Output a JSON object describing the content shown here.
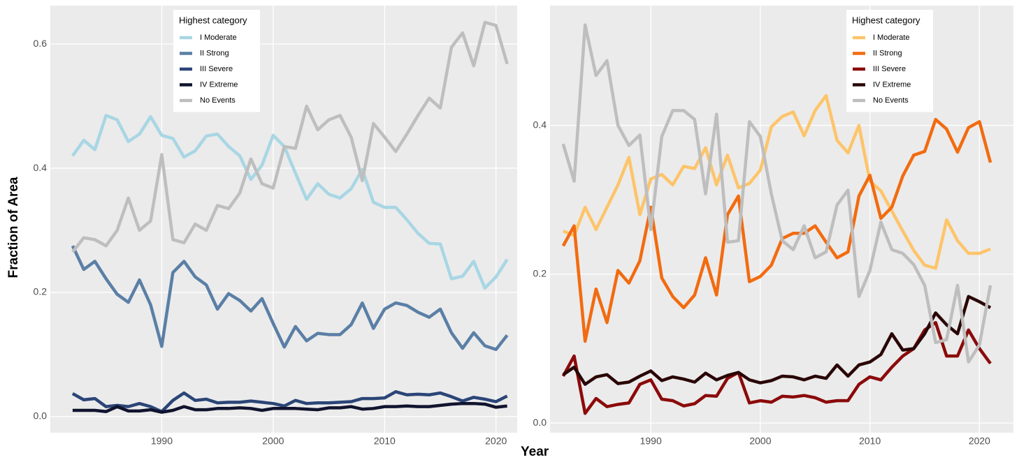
{
  "chart_data": [
    {
      "type": "line",
      "y_label": "Fraction of Area",
      "legend_title": "Highest category",
      "legend": "top-center",
      "grid": true,
      "x": [
        1982,
        1983,
        1984,
        1985,
        1986,
        1987,
        1988,
        1989,
        1990,
        1991,
        1992,
        1993,
        1994,
        1995,
        1996,
        1997,
        1998,
        1999,
        2000,
        2001,
        2002,
        2003,
        2004,
        2005,
        2006,
        2007,
        2008,
        2009,
        2010,
        2011,
        2012,
        2013,
        2014,
        2015,
        2016,
        2017,
        2018,
        2019,
        2020,
        2021
      ],
      "xlim": [
        1980,
        2021.9
      ],
      "xticks": [
        1990,
        2000,
        2010,
        2020
      ],
      "ylim": [
        -0.026,
        0.662
      ],
      "yticks": [
        {
          "value": 0,
          "label": "0.0"
        },
        0.2,
        0.4,
        0.6
      ],
      "series": [
        {
          "name": "I Moderate",
          "color": "#a8d6e4",
          "values": [
            0.42,
            0.445,
            0.43,
            0.485,
            0.478,
            0.443,
            0.455,
            0.483,
            0.453,
            0.448,
            0.418,
            0.428,
            0.452,
            0.455,
            0.435,
            0.42,
            0.382,
            0.405,
            0.453,
            0.435,
            0.392,
            0.35,
            0.375,
            0.358,
            0.352,
            0.367,
            0.398,
            0.345,
            0.337,
            0.337,
            0.317,
            0.295,
            0.279,
            0.278,
            0.222,
            0.226,
            0.25,
            0.207,
            0.225,
            0.253
          ]
        },
        {
          "name": "II Strong",
          "color": "#5b7fa6",
          "values": [
            0.275,
            0.237,
            0.25,
            0.222,
            0.197,
            0.184,
            0.22,
            0.18,
            0.113,
            0.232,
            0.25,
            0.225,
            0.212,
            0.173,
            0.198,
            0.187,
            0.17,
            0.19,
            0.15,
            0.112,
            0.145,
            0.122,
            0.134,
            0.132,
            0.132,
            0.148,
            0.183,
            0.142,
            0.173,
            0.183,
            0.179,
            0.168,
            0.16,
            0.173,
            0.135,
            0.11,
            0.135,
            0.114,
            0.108,
            0.131
          ]
        },
        {
          "name": "III Severe",
          "color": "#2b4577",
          "values": [
            0.037,
            0.027,
            0.029,
            0.016,
            0.018,
            0.016,
            0.021,
            0.016,
            0.008,
            0.026,
            0.038,
            0.026,
            0.028,
            0.022,
            0.023,
            0.023,
            0.025,
            0.023,
            0.021,
            0.017,
            0.026,
            0.021,
            0.022,
            0.022,
            0.023,
            0.024,
            0.029,
            0.029,
            0.03,
            0.04,
            0.035,
            0.036,
            0.035,
            0.038,
            0.032,
            0.025,
            0.031,
            0.028,
            0.024,
            0.033
          ]
        },
        {
          "name": "IV Extreme",
          "color": "#10142e",
          "values": [
            0.01,
            0.01,
            0.01,
            0.008,
            0.016,
            0.009,
            0.009,
            0.011,
            0.007,
            0.01,
            0.016,
            0.011,
            0.011,
            0.013,
            0.013,
            0.014,
            0.013,
            0.01,
            0.013,
            0.013,
            0.013,
            0.012,
            0.011,
            0.014,
            0.014,
            0.016,
            0.012,
            0.013,
            0.016,
            0.016,
            0.017,
            0.016,
            0.016,
            0.018,
            0.02,
            0.021,
            0.021,
            0.02,
            0.015,
            0.017
          ]
        },
        {
          "name": "No Events",
          "color": "#bebebe",
          "values": [
            0.265,
            0.288,
            0.285,
            0.275,
            0.3,
            0.352,
            0.3,
            0.315,
            0.422,
            0.285,
            0.28,
            0.31,
            0.3,
            0.34,
            0.335,
            0.36,
            0.415,
            0.375,
            0.368,
            0.435,
            0.432,
            0.5,
            0.462,
            0.478,
            0.485,
            0.45,
            0.38,
            0.472,
            0.45,
            0.427,
            0.455,
            0.485,
            0.513,
            0.497,
            0.595,
            0.618,
            0.565,
            0.635,
            0.63,
            0.568
          ]
        }
      ]
    },
    {
      "type": "line",
      "x_label": "Year",
      "legend_title": "Highest category",
      "legend": "top-right",
      "grid": true,
      "x": [
        1982,
        1983,
        1984,
        1985,
        1986,
        1987,
        1988,
        1989,
        1990,
        1991,
        1992,
        1993,
        1994,
        1995,
        1996,
        1997,
        1998,
        1999,
        2000,
        2001,
        2002,
        2003,
        2004,
        2005,
        2006,
        2007,
        2008,
        2009,
        2010,
        2011,
        2012,
        2013,
        2014,
        2015,
        2016,
        2017,
        2018,
        2019,
        2020,
        2021
      ],
      "xlim": [
        1980.8,
        2023.1
      ],
      "xticks": [
        1990,
        2000,
        2010,
        2020
      ],
      "ylim": [
        -0.013,
        0.561
      ],
      "yticks": [
        {
          "value": 0,
          "label": "0.0"
        },
        0.2,
        0.4
      ],
      "series": [
        {
          "name": "I Moderate",
          "color": "#fdc46a",
          "values": [
            0.258,
            0.252,
            0.29,
            0.26,
            0.29,
            0.32,
            0.357,
            0.28,
            0.328,
            0.334,
            0.32,
            0.345,
            0.342,
            0.37,
            0.32,
            0.36,
            0.316,
            0.322,
            0.34,
            0.398,
            0.412,
            0.418,
            0.386,
            0.42,
            0.44,
            0.38,
            0.363,
            0.4,
            0.325,
            0.312,
            0.285,
            0.258,
            0.232,
            0.212,
            0.208,
            0.273,
            0.245,
            0.228,
            0.228,
            0.234
          ]
        },
        {
          "name": "II Strong",
          "color": "#f26b10",
          "values": [
            0.238,
            0.265,
            0.11,
            0.18,
            0.135,
            0.205,
            0.188,
            0.218,
            0.29,
            0.195,
            0.17,
            0.155,
            0.172,
            0.222,
            0.172,
            0.28,
            0.305,
            0.19,
            0.197,
            0.212,
            0.248,
            0.255,
            0.255,
            0.265,
            0.243,
            0.222,
            0.23,
            0.305,
            0.333,
            0.275,
            0.29,
            0.332,
            0.36,
            0.365,
            0.408,
            0.395,
            0.364,
            0.397,
            0.405,
            0.35
          ]
        },
        {
          "name": "III Severe",
          "color": "#8b0a0a",
          "values": [
            0.063,
            0.09,
            0.013,
            0.033,
            0.022,
            0.025,
            0.027,
            0.052,
            0.058,
            0.032,
            0.03,
            0.023,
            0.026,
            0.037,
            0.036,
            0.06,
            0.068,
            0.027,
            0.03,
            0.028,
            0.036,
            0.035,
            0.037,
            0.034,
            0.028,
            0.03,
            0.03,
            0.052,
            0.062,
            0.058,
            0.075,
            0.09,
            0.1,
            0.125,
            0.135,
            0.09,
            0.09,
            0.125,
            0.1,
            0.08
          ]
        },
        {
          "name": "IV Extreme",
          "color": "#2a0606",
          "values": [
            0.065,
            0.075,
            0.052,
            0.062,
            0.065,
            0.053,
            0.055,
            0.063,
            0.07,
            0.057,
            0.062,
            0.059,
            0.055,
            0.067,
            0.058,
            0.064,
            0.068,
            0.058,
            0.054,
            0.057,
            0.063,
            0.062,
            0.058,
            0.063,
            0.06,
            0.078,
            0.063,
            0.078,
            0.082,
            0.092,
            0.12,
            0.098,
            0.1,
            0.12,
            0.148,
            0.132,
            0.12,
            0.17,
            0.163,
            0.155
          ]
        },
        {
          "name": "No Events",
          "color": "#bebebe",
          "values": [
            0.375,
            0.325,
            0.535,
            0.467,
            0.487,
            0.4,
            0.373,
            0.387,
            0.26,
            0.385,
            0.42,
            0.42,
            0.408,
            0.308,
            0.415,
            0.243,
            0.245,
            0.405,
            0.385,
            0.308,
            0.245,
            0.233,
            0.265,
            0.222,
            0.23,
            0.293,
            0.313,
            0.17,
            0.205,
            0.27,
            0.233,
            0.228,
            0.213,
            0.185,
            0.108,
            0.112,
            0.185,
            0.082,
            0.105,
            0.185
          ]
        }
      ]
    }
  ]
}
